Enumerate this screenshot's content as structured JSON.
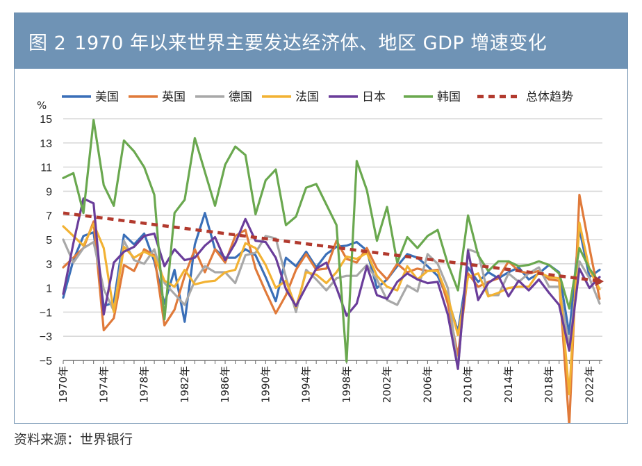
{
  "figure": {
    "label": "图 2",
    "title": "1970 年以来世界主要发达经济体、地区 GDP 增速变化",
    "source": "资料来源：世界银行"
  },
  "chart_data": {
    "type": "line",
    "ylabel": "%",
    "ylim": [
      -5,
      15
    ],
    "yticks": [
      -5,
      -3,
      -1,
      1,
      3,
      5,
      7,
      9,
      11,
      13,
      15
    ],
    "ytick_labels": [
      "−5",
      "−3",
      "−1",
      "1",
      "3",
      "5",
      "7",
      "9",
      "11",
      "13",
      "15"
    ],
    "grid": true,
    "legend_position": "top",
    "xtick_labels": [
      "1970年",
      "1974年",
      "1978年",
      "1982年",
      "1986年",
      "1990年",
      "1994年",
      "1998年",
      "2002年",
      "2006年",
      "2010年",
      "2014年",
      "2018年",
      "2022年"
    ],
    "x": [
      1970,
      1971,
      1972,
      1973,
      1974,
      1975,
      1976,
      1977,
      1978,
      1979,
      1980,
      1981,
      1982,
      1983,
      1984,
      1985,
      1986,
      1987,
      1988,
      1989,
      1990,
      1991,
      1992,
      1993,
      1994,
      1995,
      1996,
      1997,
      1998,
      1999,
      2000,
      2001,
      2002,
      2003,
      2004,
      2005,
      2006,
      2007,
      2008,
      2009,
      2010,
      2011,
      2012,
      2013,
      2014,
      2015,
      2016,
      2017,
      2018,
      2019,
      2020,
      2021,
      2022,
      2023
    ],
    "series": [
      {
        "name": "美国",
        "color": "#3a6fb8",
        "values": [
          0.2,
          3.3,
          5.3,
          5.6,
          -0.5,
          -0.2,
          5.4,
          4.6,
          5.5,
          3.2,
          -0.3,
          2.5,
          -1.8,
          4.6,
          7.2,
          4.2,
          3.5,
          3.5,
          4.2,
          3.7,
          1.9,
          -0.1,
          3.5,
          2.8,
          4.0,
          2.7,
          3.8,
          4.4,
          4.5,
          4.8,
          4.1,
          1.0,
          1.7,
          2.8,
          3.8,
          3.5,
          2.8,
          2.0,
          0.1,
          -2.6,
          2.7,
          1.5,
          2.3,
          1.8,
          2.3,
          2.7,
          1.7,
          2.2,
          2.9,
          2.3,
          -2.8,
          5.9,
          1.9,
          2.5
        ]
      },
      {
        "name": "英国",
        "color": "#e07a3a",
        "values": [
          2.7,
          3.5,
          4.3,
          6.5,
          -2.5,
          -1.5,
          2.9,
          2.4,
          4.2,
          3.7,
          -2.1,
          -0.8,
          2.0,
          4.2,
          2.3,
          4.2,
          3.1,
          5.3,
          5.8,
          2.6,
          0.7,
          -1.1,
          0.4,
          2.5,
          3.8,
          2.5,
          2.6,
          4.9,
          3.4,
          3.1,
          4.3,
          2.6,
          1.7,
          3.0,
          2.3,
          2.6,
          2.4,
          2.5,
          -0.3,
          -4.6,
          2.2,
          1.1,
          1.5,
          1.8,
          3.2,
          2.4,
          2.2,
          2.4,
          1.7,
          1.6,
          -10.4,
          8.7,
          4.3,
          0.1
        ]
      },
      {
        "name": "德国",
        "color": "#a8a8a8",
        "values": [
          5.0,
          3.1,
          4.3,
          4.8,
          0.9,
          -0.9,
          4.9,
          3.3,
          3.0,
          4.2,
          1.4,
          0.5,
          -0.4,
          1.6,
          2.8,
          2.3,
          2.3,
          1.4,
          3.7,
          3.9,
          5.3,
          5.1,
          1.9,
          -1.0,
          2.5,
          1.7,
          0.8,
          1.8,
          2.0,
          2.0,
          2.9,
          1.7,
          0.0,
          -0.4,
          1.2,
          0.7,
          3.8,
          3.0,
          1.0,
          -5.7,
          4.2,
          3.9,
          0.4,
          0.4,
          2.2,
          1.5,
          2.2,
          2.7,
          1.1,
          1.1,
          -3.8,
          3.2,
          1.8,
          -0.3
        ]
      },
      {
        "name": "法国",
        "color": "#f2b233",
        "values": [
          6.1,
          5.3,
          4.5,
          6.3,
          4.3,
          -1.0,
          4.4,
          3.5,
          4.0,
          3.6,
          1.6,
          1.1,
          2.5,
          1.3,
          1.5,
          1.6,
          2.3,
          2.5,
          4.7,
          4.3,
          2.9,
          1.0,
          1.6,
          -0.6,
          2.3,
          2.1,
          1.4,
          2.3,
          3.6,
          3.4,
          3.9,
          2.0,
          1.1,
          0.8,
          2.8,
          1.7,
          2.4,
          2.4,
          0.3,
          -2.9,
          1.9,
          2.2,
          0.3,
          0.6,
          1.0,
          1.1,
          1.1,
          2.3,
          1.9,
          1.8,
          -7.8,
          6.4,
          2.5,
          0.9
        ]
      },
      {
        "name": "日本",
        "color": "#6a3d9a",
        "values": [
          0.5,
          4.7,
          8.4,
          8.0,
          -1.2,
          3.1,
          4.0,
          4.4,
          5.3,
          5.5,
          2.8,
          4.2,
          3.3,
          3.5,
          4.5,
          5.2,
          3.3,
          4.7,
          6.7,
          4.9,
          4.8,
          3.5,
          0.9,
          -0.5,
          1.1,
          2.6,
          3.1,
          1.0,
          -1.3,
          -0.3,
          2.8,
          0.4,
          0.1,
          1.5,
          2.2,
          1.7,
          1.4,
          1.5,
          -1.2,
          -5.7,
          4.1,
          0.0,
          1.4,
          2.0,
          0.3,
          1.6,
          0.8,
          1.7,
          0.6,
          -0.4,
          -4.2,
          2.6,
          1.0,
          1.9
        ]
      },
      {
        "name": "韩国",
        "color": "#6aa84f",
        "values": [
          10.1,
          10.5,
          7.2,
          14.9,
          9.5,
          7.8,
          13.2,
          12.3,
          11.0,
          8.7,
          -1.6,
          7.2,
          8.3,
          13.4,
          10.6,
          7.8,
          11.2,
          12.7,
          12.0,
          7.1,
          9.9,
          10.8,
          6.2,
          6.9,
          9.3,
          9.6,
          7.9,
          6.2,
          -5.1,
          11.5,
          9.1,
          4.9,
          7.7,
          3.1,
          5.2,
          4.3,
          5.3,
          5.8,
          3.0,
          0.8,
          7.0,
          3.7,
          2.4,
          3.2,
          3.2,
          2.8,
          2.9,
          3.2,
          2.9,
          2.2,
          -0.7,
          4.3,
          2.6,
          1.4
        ]
      },
      {
        "name": "总体趋势",
        "color": "#b23a2e",
        "dashed": true,
        "start": [
          1970,
          7.2
        ],
        "end": [
          2023,
          1.6
        ]
      }
    ]
  }
}
